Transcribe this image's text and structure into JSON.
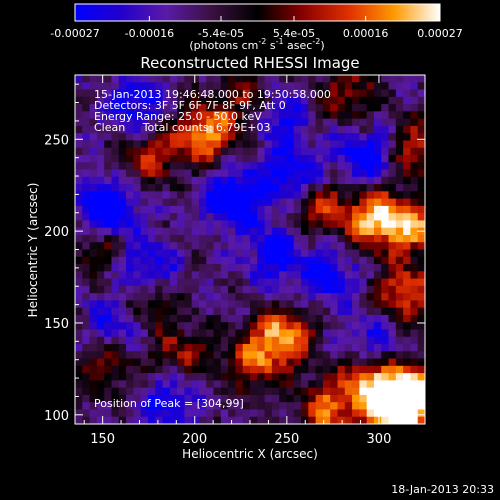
{
  "chart_data": {
    "type": "heatmap",
    "title": "Reconstructed RHESSI Image",
    "xlabel": "Heliocentric X (arcsec)",
    "ylabel": "Heliocentric Y (arcsec)",
    "xlim": [
      135,
      325
    ],
    "ylim": [
      95,
      285
    ],
    "x_ticks": [
      150,
      200,
      250,
      300
    ],
    "y_ticks": [
      100,
      150,
      200,
      250
    ],
    "colorbar": {
      "range": [
        -0.00027,
        0.00027
      ],
      "tick_values": [
        -0.00027,
        -0.00016,
        -5.4e-05,
        5.4e-05,
        0.00016,
        0.00027
      ],
      "tick_labels": [
        "-0.00027",
        "-0.00016",
        "-5.4e-05",
        "5.4e-05",
        "0.00016",
        "0.00027"
      ],
      "units_prefix": "(photons cm",
      "units_exp1": "-2",
      "units_mid": " s",
      "units_exp2": "-1",
      "units_mid2": " asec",
      "units_exp3": "-2",
      "units_suffix": ")",
      "colors": [
        "#0000ff",
        "#2200cc",
        "#5a1aa8",
        "#3a1040",
        "#000000",
        "#8a0000",
        "#e03000",
        "#ff9a00",
        "#ffffff"
      ]
    },
    "annotations": {
      "time_range": "15-Jan-2013 19:46:48.000 to 19:50:58.000",
      "detectors": "Detectors: 3F 5F 6F 7F 8F 9F, Att 0",
      "energy": "Energy Range: 25.0 - 50.0 keV",
      "clean": "Clean     Total counts: 6.79E+03",
      "peak": "Position of Peak = [304,99]"
    },
    "peak_position": [
      304,
      99
    ],
    "hotspots": [
      {
        "x": 309,
        "y": 101,
        "v": 1.0
      },
      {
        "x": 318,
        "y": 112,
        "v": 0.95
      },
      {
        "x": 294,
        "y": 118,
        "v": 0.8
      },
      {
        "x": 272,
        "y": 102,
        "v": 0.7
      },
      {
        "x": 248,
        "y": 143,
        "v": 0.85
      },
      {
        "x": 232,
        "y": 128,
        "v": 0.6
      },
      {
        "x": 314,
        "y": 166,
        "v": 0.75
      },
      {
        "x": 297,
        "y": 207,
        "v": 0.9
      },
      {
        "x": 318,
        "y": 203,
        "v": 0.8
      },
      {
        "x": 268,
        "y": 214,
        "v": 0.6
      },
      {
        "x": 205,
        "y": 253,
        "v": 0.85
      },
      {
        "x": 176,
        "y": 242,
        "v": 0.55
      },
      {
        "x": 175,
        "y": 165,
        "v": 0.55
      },
      {
        "x": 192,
        "y": 133,
        "v": 0.5
      },
      {
        "x": 152,
        "y": 126,
        "v": 0.45
      },
      {
        "x": 148,
        "y": 192,
        "v": 0.45
      },
      {
        "x": 283,
        "y": 275,
        "v": 0.5
      },
      {
        "x": 228,
        "y": 270,
        "v": 0.45
      },
      {
        "x": 322,
        "y": 244,
        "v": 0.6
      }
    ],
    "coldspots": [
      {
        "x": 152,
        "y": 211,
        "v": -0.9
      },
      {
        "x": 174,
        "y": 178,
        "v": -0.7
      },
      {
        "x": 222,
        "y": 218,
        "v": -0.75
      },
      {
        "x": 254,
        "y": 230,
        "v": -0.6
      },
      {
        "x": 244,
        "y": 187,
        "v": -0.55
      },
      {
        "x": 186,
        "y": 108,
        "v": -0.5
      },
      {
        "x": 292,
        "y": 240,
        "v": -0.6
      },
      {
        "x": 272,
        "y": 175,
        "v": -0.5
      },
      {
        "x": 168,
        "y": 268,
        "v": -0.55
      },
      {
        "x": 246,
        "y": 262,
        "v": -0.5
      },
      {
        "x": 156,
        "y": 150,
        "v": -0.45
      },
      {
        "x": 298,
        "y": 140,
        "v": -0.45
      }
    ]
  },
  "footer": {
    "timestamp": "18-Jan-2013 20:33"
  }
}
